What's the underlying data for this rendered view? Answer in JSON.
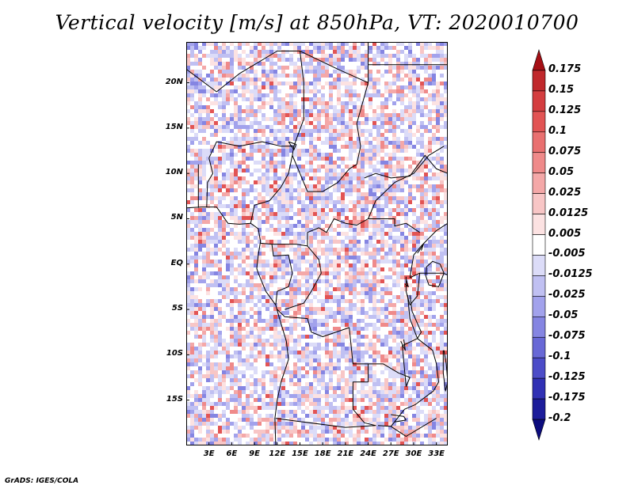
{
  "title": "Vertical velocity [m/s] at 850hPa, VT: 2020010700",
  "footer": "GrADS: IGES/COLA",
  "map": {
    "lat_labels": [
      "20N",
      "15N",
      "10N",
      "5N",
      "EQ",
      "5S",
      "10S",
      "15S"
    ],
    "lat_values": [
      20,
      15,
      10,
      5,
      0,
      -5,
      -10,
      -15
    ],
    "lon_labels": [
      "3E",
      "6E",
      "9E",
      "12E",
      "15E",
      "18E",
      "21E",
      "24E",
      "27E",
      "30E",
      "33E"
    ],
    "lon_values": [
      3,
      6,
      9,
      12,
      15,
      18,
      21,
      24,
      27,
      30,
      33
    ],
    "lat_range": [
      -20,
      24.5
    ],
    "lon_range": [
      0,
      34.5
    ]
  },
  "colorbar": {
    "labels": [
      "0.175",
      "0.15",
      "0.125",
      "0.1",
      "0.075",
      "0.05",
      "0.025",
      "0.0125",
      "0.005",
      "-0.005",
      "-0.0125",
      "-0.025",
      "-0.05",
      "-0.075",
      "-0.1",
      "-0.125",
      "-0.175",
      "-0.2"
    ],
    "colors": [
      "#a50f15",
      "#c0282c",
      "#d43d3f",
      "#e25454",
      "#e97070",
      "#ef8a8a",
      "#f4a8a8",
      "#f8c6c6",
      "#fce2e2",
      "#ffffff",
      "#dcdcf8",
      "#c0c0f2",
      "#a2a2ec",
      "#8585e2",
      "#6868d6",
      "#4c4cc8",
      "#3030b4",
      "#1c1c9a",
      "#0c0c7e"
    ]
  }
}
